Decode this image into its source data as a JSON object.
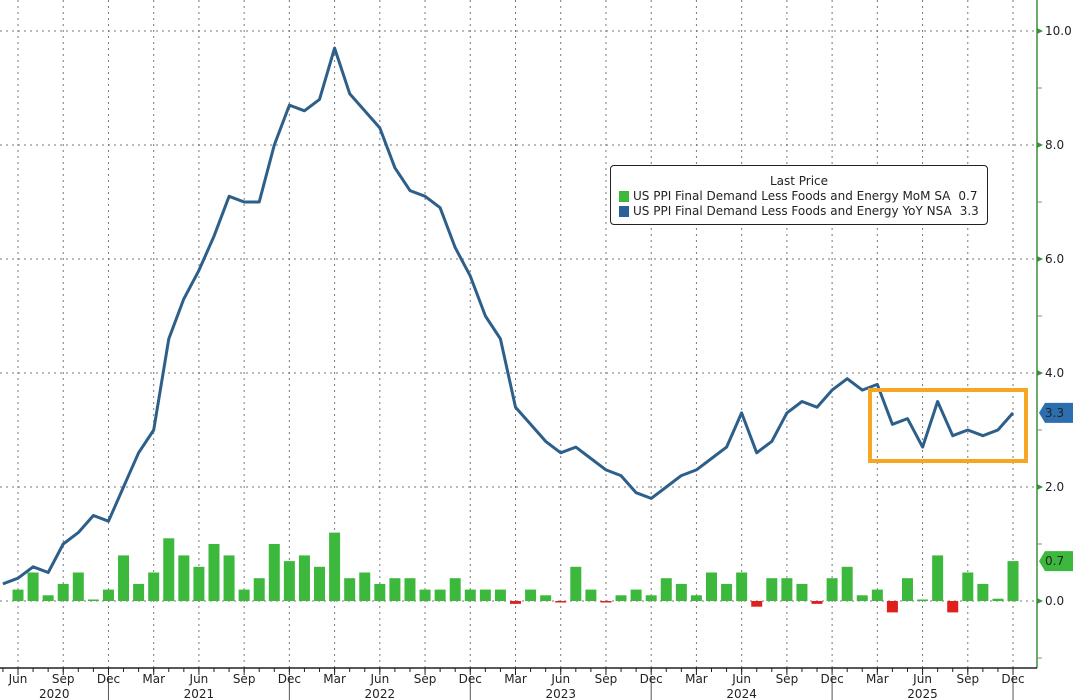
{
  "chart_data": {
    "type": "bar+line",
    "title": "",
    "xlabel": "",
    "ylabel": "",
    "ylim": [
      -1.0,
      10.5
    ],
    "grid": true,
    "legend_position": "top-right",
    "x": [
      "May 2020",
      "Jun 2020",
      "Jul 2020",
      "Aug 2020",
      "Sep 2020",
      "Oct 2020",
      "Nov 2020",
      "Dec 2020",
      "Jan 2021",
      "Feb 2021",
      "Mar 2021",
      "Apr 2021",
      "May 2021",
      "Jun 2021",
      "Jul 2021",
      "Aug 2021",
      "Sep 2021",
      "Oct 2021",
      "Nov 2021",
      "Dec 2021",
      "Jan 2022",
      "Feb 2022",
      "Mar 2022",
      "Apr 2022",
      "May 2022",
      "Jun 2022",
      "Jul 2022",
      "Aug 2022",
      "Sep 2022",
      "Oct 2022",
      "Nov 2022",
      "Dec 2022",
      "Jan 2023",
      "Feb 2023",
      "Mar 2023",
      "Apr 2023",
      "May 2023",
      "Jun 2023",
      "Jul 2023",
      "Aug 2023",
      "Sep 2023",
      "Oct 2023",
      "Nov 2023",
      "Dec 2023",
      "Jan 2024",
      "Feb 2024",
      "Mar 2024",
      "Apr 2024",
      "May 2024",
      "Jun 2024",
      "Jul 2024",
      "Aug 2024",
      "Sep 2024",
      "Oct 2024",
      "Nov 2024",
      "Dec 2024",
      "Jan 2025",
      "Feb 2025",
      "Mar 2025",
      "Apr 2025",
      "May 2025",
      "Jun 2025",
      "Jul 2025",
      "Aug 2025",
      "Sep 2025",
      "Oct 2025",
      "Nov 2025",
      "Dec 2025"
    ],
    "series": [
      {
        "name": "US PPI Final Demand Less Foods and Energy MoM SA",
        "type": "bar",
        "last_value": "0.7",
        "color": "#3cb93c",
        "negative_color": "#e0201c",
        "values": [
          null,
          0.2,
          0.5,
          0.1,
          0.3,
          0.5,
          0.0,
          0.2,
          0.8,
          0.3,
          0.5,
          1.1,
          0.8,
          0.6,
          1.0,
          0.8,
          0.2,
          0.4,
          1.0,
          0.7,
          0.8,
          0.6,
          1.2,
          0.4,
          0.5,
          0.3,
          0.4,
          0.4,
          0.2,
          0.2,
          0.4,
          0.2,
          0.2,
          0.2,
          -0.05,
          0.2,
          0.1,
          -0.02,
          0.6,
          0.2,
          -0.02,
          0.1,
          0.2,
          0.1,
          0.4,
          0.3,
          0.1,
          0.5,
          0.3,
          0.5,
          -0.1,
          0.4,
          0.4,
          0.3,
          -0.05,
          0.4,
          0.6,
          0.1,
          0.2,
          -0.2,
          0.4,
          0.0,
          0.8,
          -0.2,
          0.5,
          0.3,
          0.04,
          0.7
        ]
      },
      {
        "name": "US PPI Final Demand Less Foods and Energy YoY NSA",
        "type": "line",
        "last_value": "3.3",
        "color": "#2d5f8b",
        "values": [
          0.3,
          0.4,
          0.6,
          0.5,
          1.0,
          1.2,
          1.5,
          1.4,
          2.0,
          2.6,
          3.0,
          4.6,
          5.3,
          5.8,
          6.4,
          7.1,
          7.0,
          7.0,
          8.0,
          8.7,
          8.6,
          8.8,
          9.7,
          8.9,
          8.6,
          8.3,
          7.6,
          7.2,
          7.1,
          6.9,
          6.2,
          5.7,
          5.0,
          4.6,
          3.4,
          3.1,
          2.8,
          2.6,
          2.7,
          2.5,
          2.3,
          2.2,
          1.9,
          1.8,
          2.0,
          2.2,
          2.3,
          2.5,
          2.7,
          3.3,
          2.6,
          2.8,
          3.3,
          3.5,
          3.4,
          3.7,
          3.9,
          3.7,
          3.8,
          3.1,
          3.2,
          2.7,
          3.5,
          2.9,
          3.0,
          2.9,
          3.0,
          3.3
        ]
      }
    ],
    "y_ticks": [
      "10.0",
      "8.0",
      "6.0",
      "4.0",
      "2.0",
      "0.0"
    ],
    "x_tick_labels": [
      "Jun",
      "Sep",
      "Dec",
      "Mar",
      "Jun",
      "Sep",
      "Dec",
      "Mar",
      "Jun",
      "Sep",
      "Dec",
      "Mar",
      "Jun",
      "Sep",
      "Dec",
      "Mar",
      "Jun",
      "Sep",
      "Dec",
      "Mar",
      "Jun",
      "Sep",
      "Dec"
    ],
    "year_labels": [
      "2020",
      "2021",
      "2022",
      "2023",
      "2024",
      "2025"
    ],
    "legend_title": "Last Price",
    "highlight_box_color": "#f5a623"
  }
}
